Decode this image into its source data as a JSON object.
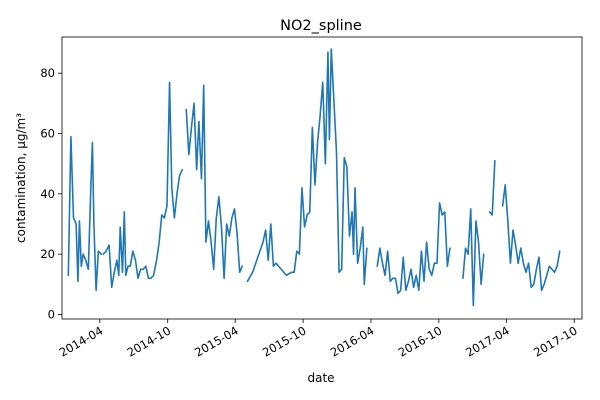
{
  "chart_data": {
    "type": "line",
    "title": "NO2_spline",
    "xlabel": "date",
    "ylabel": "contamination, µg/m³",
    "x_axis_type": "date",
    "xlim": [
      "2013-12-20",
      "2017-10-22"
    ],
    "ylim": [
      -1.5,
      92
    ],
    "x_ticks": [
      {
        "date": "2014-04-01",
        "label": "2014-04"
      },
      {
        "date": "2014-10-01",
        "label": "2014-10"
      },
      {
        "date": "2015-04-01",
        "label": "2015-04"
      },
      {
        "date": "2015-10-01",
        "label": "2015-10"
      },
      {
        "date": "2016-04-01",
        "label": "2016-04"
      },
      {
        "date": "2016-10-01",
        "label": "2016-10"
      },
      {
        "date": "2017-04-01",
        "label": "2017-04"
      },
      {
        "date": "2017-10-01",
        "label": "2017-10"
      }
    ],
    "x_tick_rotation": 30,
    "y_ticks": [
      0,
      20,
      40,
      60,
      80
    ],
    "grid": false,
    "legend": "none",
    "color": "#1f77b4",
    "series": [
      {
        "segments": [
          [
            [
              "2014-01-06",
              13
            ],
            [
              "2014-01-13",
              59
            ],
            [
              "2014-01-20",
              32
            ],
            [
              "2014-01-27",
              30
            ],
            [
              "2014-02-01",
              11
            ],
            [
              "2014-02-05",
              31
            ],
            [
              "2014-02-10",
              16
            ],
            [
              "2014-02-15",
              20
            ],
            [
              "2014-02-22",
              18
            ],
            [
              "2014-03-01",
              15
            ],
            [
              "2014-03-08",
              43
            ],
            [
              "2014-03-12",
              57
            ],
            [
              "2014-03-16",
              30
            ],
            [
              "2014-03-22",
              8
            ],
            [
              "2014-03-28",
              21
            ],
            [
              "2014-04-05",
              20
            ]
          ],
          [
            [
              "2014-04-10",
              20
            ],
            [
              "2014-04-18",
              21
            ],
            [
              "2014-04-26",
              23
            ],
            [
              "2014-05-03",
              9
            ],
            [
              "2014-05-10",
              14
            ],
            [
              "2014-05-17",
              18
            ],
            [
              "2014-05-22",
              13
            ],
            [
              "2014-05-26",
              29
            ],
            [
              "2014-06-01",
              14
            ],
            [
              "2014-06-06",
              34
            ],
            [
              "2014-06-10",
              13
            ],
            [
              "2014-06-16",
              16
            ],
            [
              "2014-06-22",
              16
            ],
            [
              "2014-06-29",
              21
            ],
            [
              "2014-07-06",
              18
            ],
            [
              "2014-07-13",
              12
            ],
            [
              "2014-07-20",
              15
            ],
            [
              "2014-07-27",
              15
            ],
            [
              "2014-08-03",
              16
            ],
            [
              "2014-08-10",
              12
            ],
            [
              "2014-08-17",
              12
            ],
            [
              "2014-08-24",
              13
            ],
            [
              "2014-09-01",
              18
            ],
            [
              "2014-09-08",
              24
            ],
            [
              "2014-09-15",
              33
            ],
            [
              "2014-09-22",
              32
            ],
            [
              "2014-09-29",
              36
            ],
            [
              "2014-10-06",
              77
            ],
            [
              "2014-10-12",
              42
            ],
            [
              "2014-10-19",
              32
            ],
            [
              "2014-10-26",
              40
            ],
            [
              "2014-11-02",
              46
            ],
            [
              "2014-11-09",
              48
            ]
          ],
          [
            [
              "2014-11-20",
              68
            ],
            [
              "2014-11-27",
              53
            ],
            [
              "2014-12-04",
              62
            ],
            [
              "2014-12-11",
              70
            ],
            [
              "2014-12-18",
              48
            ],
            [
              "2014-12-24",
              64
            ],
            [
              "2014-12-31",
              45
            ],
            [
              "2015-01-06",
              76
            ],
            [
              "2015-01-12",
              24
            ],
            [
              "2015-01-19",
              31
            ],
            [
              "2015-01-26",
              24
            ],
            [
              "2015-02-02",
              15
            ],
            [
              "2015-02-09",
              32
            ],
            [
              "2015-02-16",
              39
            ],
            [
              "2015-02-23",
              29
            ],
            [
              "2015-03-02",
              12
            ],
            [
              "2015-03-09",
              30
            ],
            [
              "2015-03-16",
              26
            ],
            [
              "2015-03-23",
              32
            ],
            [
              "2015-03-30",
              35
            ],
            [
              "2015-04-06",
              27
            ],
            [
              "2015-04-13",
              14
            ],
            [
              "2015-04-20",
              16
            ]
          ],
          [
            [
              "2015-05-04",
              11
            ],
            [
              "2015-05-18",
              14
            ],
            [
              "2015-06-01",
              19
            ],
            [
              "2015-06-15",
              24
            ],
            [
              "2015-06-22",
              28
            ],
            [
              "2015-06-29",
              18
            ],
            [
              "2015-07-06",
              30
            ],
            [
              "2015-07-13",
              16
            ],
            [
              "2015-07-20",
              17
            ],
            [
              "2015-07-27",
              16
            ],
            [
              "2015-08-03",
              15
            ],
            [
              "2015-08-17",
              13
            ],
            [
              "2015-08-31",
              14
            ],
            [
              "2015-09-07",
              14
            ],
            [
              "2015-09-14",
              21
            ],
            [
              "2015-09-21",
              20
            ],
            [
              "2015-09-28",
              42
            ],
            [
              "2015-10-05",
              29
            ],
            [
              "2015-10-12",
              33
            ],
            [
              "2015-10-19",
              34
            ],
            [
              "2015-10-26",
              62
            ],
            [
              "2015-11-02",
              43
            ],
            [
              "2015-11-09",
              57
            ],
            [
              "2015-11-16",
              66
            ],
            [
              "2015-11-23",
              77
            ],
            [
              "2015-11-30",
              50
            ],
            [
              "2015-12-07",
              87
            ],
            [
              "2015-12-11",
              58
            ],
            [
              "2015-12-16",
              88
            ],
            [
              "2015-12-23",
              71
            ],
            [
              "2015-12-30",
              54
            ],
            [
              "2016-01-06",
              14
            ],
            [
              "2016-01-13",
              15
            ],
            [
              "2016-01-20",
              52
            ],
            [
              "2016-01-27",
              49
            ],
            [
              "2016-02-03",
              26
            ],
            [
              "2016-02-10",
              34
            ],
            [
              "2016-02-14",
              20
            ],
            [
              "2016-02-18",
              42
            ],
            [
              "2016-02-25",
              17
            ],
            [
              "2016-03-03",
              22
            ],
            [
              "2016-03-10",
              29
            ],
            [
              "2016-03-14",
              10
            ],
            [
              "2016-03-21",
              22
            ]
          ],
          [
            [
              "2016-04-18",
              16
            ],
            [
              "2016-04-25",
              22
            ],
            [
              "2016-05-02",
              17
            ],
            [
              "2016-05-09",
              13
            ],
            [
              "2016-05-16",
              21
            ],
            [
              "2016-05-23",
              11
            ],
            [
              "2016-05-30",
              12
            ],
            [
              "2016-06-06",
              12
            ],
            [
              "2016-06-13",
              7
            ],
            [
              "2016-06-20",
              8
            ],
            [
              "2016-06-27",
              19
            ],
            [
              "2016-07-04",
              8
            ],
            [
              "2016-07-11",
              11
            ],
            [
              "2016-07-18",
              15
            ],
            [
              "2016-07-25",
              9
            ],
            [
              "2016-08-01",
              13
            ],
            [
              "2016-08-08",
              8
            ],
            [
              "2016-08-15",
              21
            ],
            [
              "2016-08-22",
              11
            ],
            [
              "2016-08-29",
              24
            ],
            [
              "2016-09-05",
              15
            ],
            [
              "2016-09-12",
              13
            ],
            [
              "2016-09-19",
              17
            ],
            [
              "2016-09-26",
              17
            ],
            [
              "2016-10-03",
              37
            ],
            [
              "2016-10-10",
              33
            ],
            [
              "2016-10-17",
              34
            ],
            [
              "2016-10-24",
              16
            ],
            [
              "2016-10-31",
              22
            ]
          ],
          [
            [
              "2016-12-05",
              12
            ],
            [
              "2016-12-12",
              22
            ],
            [
              "2016-12-19",
              20
            ],
            [
              "2016-12-26",
              35
            ],
            [
              "2017-01-02",
              3
            ],
            [
              "2017-01-09",
              31
            ],
            [
              "2017-01-16",
              24
            ],
            [
              "2017-01-23",
              10
            ],
            [
              "2017-01-30",
              20
            ]
          ],
          [
            [
              "2017-02-15",
              34
            ],
            [
              "2017-02-22",
              33
            ],
            [
              "2017-03-01",
              51
            ]
          ],
          [
            [
              "2017-03-22",
              36
            ],
            [
              "2017-03-29",
              43
            ],
            [
              "2017-04-05",
              31
            ],
            [
              "2017-04-12",
              17
            ],
            [
              "2017-04-19",
              28
            ],
            [
              "2017-04-26",
              23
            ],
            [
              "2017-05-03",
              17
            ],
            [
              "2017-05-10",
              22
            ],
            [
              "2017-05-17",
              17
            ],
            [
              "2017-05-24",
              14
            ],
            [
              "2017-05-31",
              17
            ],
            [
              "2017-06-07",
              9
            ],
            [
              "2017-06-14",
              10
            ],
            [
              "2017-06-21",
              15
            ],
            [
              "2017-06-28",
              19
            ],
            [
              "2017-07-05",
              8
            ],
            [
              "2017-07-12",
              10
            ],
            [
              "2017-07-19",
              13
            ],
            [
              "2017-07-26",
              16
            ],
            [
              "2017-08-02",
              15
            ],
            [
              "2017-08-09",
              14
            ],
            [
              "2017-08-16",
              16
            ],
            [
              "2017-08-23",
              21
            ]
          ]
        ]
      }
    ]
  }
}
